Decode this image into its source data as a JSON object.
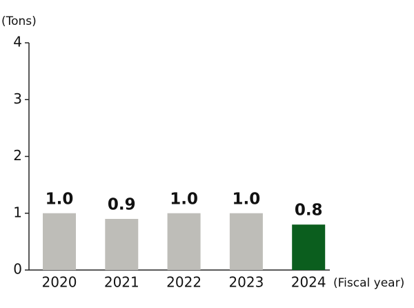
{
  "chart_data": {
    "type": "bar",
    "y_label": "(Tons)",
    "x_label": "(Fiscal year)",
    "categories": [
      "2020",
      "2021",
      "2022",
      "2023",
      "2024"
    ],
    "values": [
      1.0,
      0.9,
      1.0,
      1.0,
      0.8
    ],
    "value_labels": [
      "1.0",
      "0.9",
      "1.0",
      "1.0",
      "0.8"
    ],
    "colors": [
      "#bebdb8",
      "#bebdb8",
      "#bebdb8",
      "#bebdb8",
      "#0b5e1e"
    ],
    "ylim": [
      0,
      4
    ],
    "yticks": [
      0,
      1,
      2,
      3,
      4
    ],
    "grid": false
  }
}
